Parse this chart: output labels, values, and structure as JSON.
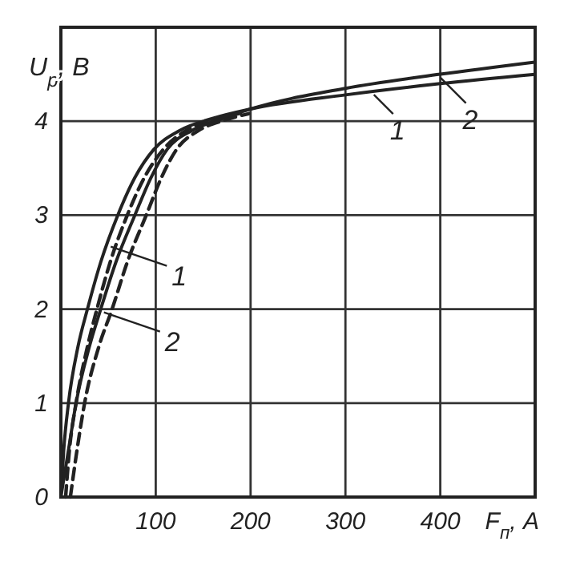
{
  "chart_data": {
    "type": "line",
    "ylabel": "U$_{р}$, В",
    "xlabel": "F$_{п}$, А",
    "xlim": [
      0,
      500
    ],
    "ylim": [
      0,
      5
    ],
    "xticks": [
      100,
      200,
      300,
      400
    ],
    "yticks": [
      0,
      1,
      2,
      3,
      4
    ],
    "grid": true,
    "legend": "top right",
    "marker": "none",
    "series": [
      {
        "name": "1",
        "color": "#222222",
        "line_style": "solid",
        "x": [
          0,
          3,
          8,
          18,
          28,
          42,
          60,
          78,
          98,
          125,
          160,
          200,
          300,
          400,
          500
        ],
        "values": [
          0,
          0.5,
          1,
          1.6,
          2,
          2.5,
          3,
          3.4,
          3.7,
          3.9,
          4.03,
          4.13,
          4.28,
          4.4,
          4.5
        ]
      },
      {
        "color": "#222222",
        "line_style": "dashed",
        "x": [
          5,
          9,
          16,
          28,
          38,
          52,
          70,
          88,
          108,
          132,
          165,
          195
        ],
        "values": [
          0,
          0.5,
          1,
          1.6,
          2,
          2.5,
          3,
          3.4,
          3.7,
          3.9,
          4.02,
          4.1
        ]
      },
      {
        "name": "2",
        "color": "#222222",
        "line_style": "solid",
        "x": [
          0,
          8,
          16,
          30,
          42,
          58,
          78,
          95,
          112,
          138,
          168,
          200,
          300,
          400,
          500
        ],
        "values": [
          0,
          0.5,
          1,
          1.6,
          2,
          2.5,
          3,
          3.4,
          3.7,
          3.9,
          4.02,
          4.13,
          4.35,
          4.5,
          4.63
        ]
      },
      {
        "color": "#222222",
        "line_style": "dashed",
        "x": [
          10,
          17,
          25,
          40,
          54,
          70,
          90,
          106,
          122,
          145,
          172,
          198
        ],
        "values": [
          0,
          0.5,
          1,
          1.6,
          2,
          2.5,
          3,
          3.4,
          3.7,
          3.9,
          4.01,
          4.08
        ]
      }
    ]
  }
}
